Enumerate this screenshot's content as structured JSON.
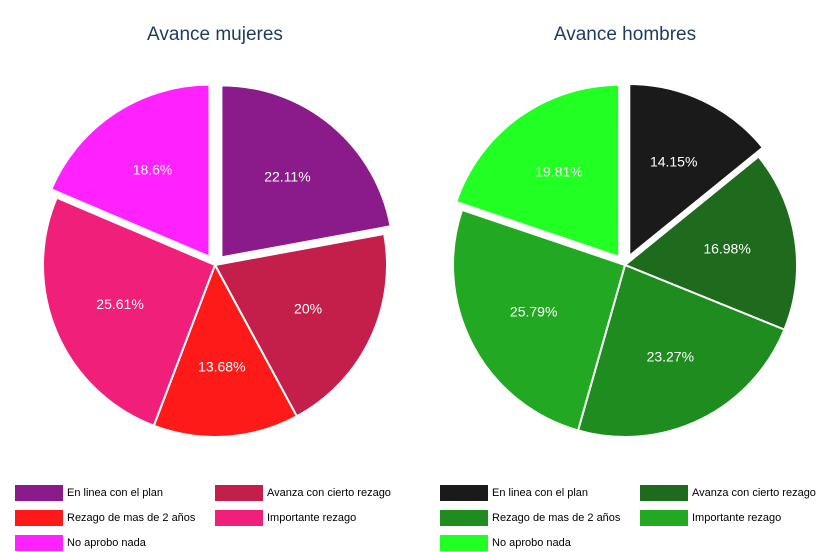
{
  "chart_data": [
    {
      "type": "pie",
      "title": "Avance mujeres",
      "categories": [
        "En linea con el plan",
        "Avanza con cierto rezago",
        "Rezago de mas de 2 años",
        "Importante rezago",
        "No aprobo nada"
      ],
      "values": [
        22.11,
        20,
        13.68,
        25.61,
        18.6
      ],
      "value_labels": [
        "22.11%",
        "20%",
        "13.68%",
        "25.61%",
        "18.6%"
      ],
      "colors": [
        "#8b1a8b",
        "#c41e4a",
        "#ff1a1a",
        "#f0207a",
        "#ff22ff"
      ]
    },
    {
      "type": "pie",
      "title": "Avance hombres",
      "categories": [
        "En linea con el plan",
        "Avanza con cierto rezago",
        "Rezago de mas de 2 años",
        "Importante rezago",
        "No aprobo nada"
      ],
      "values": [
        14.15,
        16.98,
        23.27,
        25.79,
        19.81
      ],
      "value_labels": [
        "14.15%",
        "16.98%",
        "23.27%",
        "25.79%",
        "19.81%"
      ],
      "colors": [
        "#1a1a1a",
        "#1e6b1e",
        "#1e8c1e",
        "#22a822",
        "#22ff22"
      ]
    }
  ]
}
